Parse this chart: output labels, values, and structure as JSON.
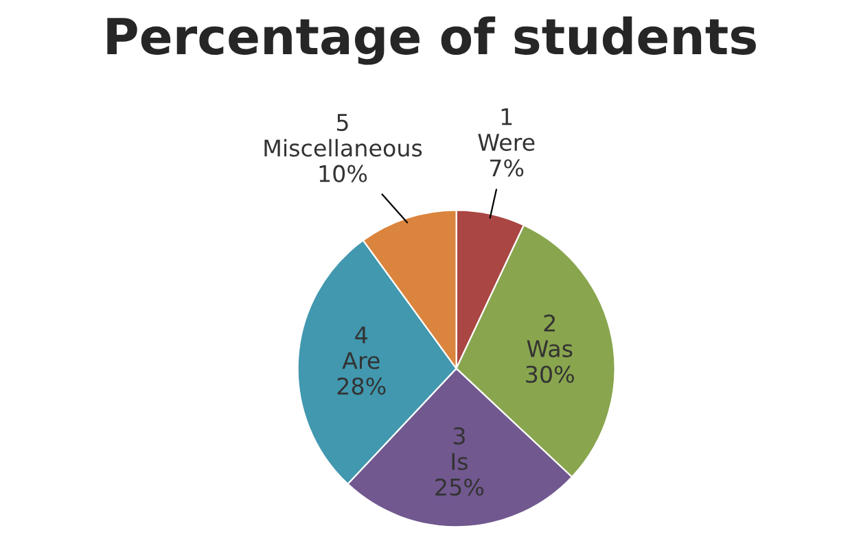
{
  "chart_data": {
    "type": "pie",
    "title": "Percentage of students",
    "categories": [
      "1 Were",
      "2 Was",
      "3 Is",
      "4 Are",
      "5 Miscellaneous"
    ],
    "values": [
      7,
      30,
      25,
      28,
      10
    ],
    "colors": [
      "#aa4643",
      "#89a54e",
      "#71588f",
      "#4198af",
      "#db843d"
    ],
    "value_labels": [
      "7%",
      "30%",
      "25%",
      "28%",
      "10%"
    ],
    "legend": false
  }
}
